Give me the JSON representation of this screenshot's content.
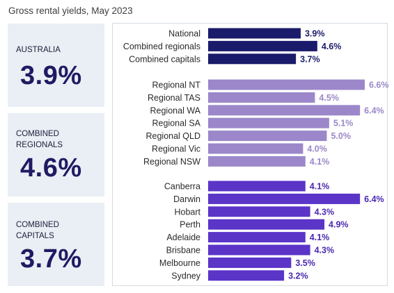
{
  "title": "Gross rental yields, May 2023",
  "cards": [
    {
      "label": "AUSTRALIA",
      "value": "3.9%"
    },
    {
      "label": "COMBINED\nREGIONALS",
      "value": "4.6%"
    },
    {
      "label": "COMBINED\nCAPITALS",
      "value": "3.7%"
    }
  ],
  "colors": {
    "aggregate": "#1b1b6b",
    "regional": "#9b87c9",
    "capital": "#5b34c8",
    "card_bg": "#e9eff4"
  },
  "chart_data": {
    "type": "bar",
    "orientation": "horizontal",
    "title": "Gross rental yields, May 2023",
    "groups": [
      {
        "name": "aggregate",
        "categories": [
          "National",
          "Combined regionals",
          "Combined capitals"
        ],
        "values": [
          3.9,
          4.6,
          3.7
        ],
        "labels": [
          "3.9%",
          "4.6%",
          "3.7%"
        ]
      },
      {
        "name": "regional",
        "categories": [
          "Regional NT",
          "Regional TAS",
          "Regional WA",
          "Regional SA",
          "Regional QLD",
          "Regional Vic",
          "Regional NSW"
        ],
        "values": [
          6.6,
          4.5,
          6.4,
          5.1,
          5.0,
          4.0,
          4.1
        ],
        "labels": [
          "6.6%",
          "4.5%",
          "6.4%",
          "5.1%",
          "5.0%",
          "4.0%",
          "4.1%"
        ]
      },
      {
        "name": "capital",
        "categories": [
          "Canberra",
          "Darwin",
          "Hobart",
          "Perth",
          "Adelaide",
          "Brisbane",
          "Melbourne",
          "Sydney"
        ],
        "values": [
          4.1,
          6.4,
          4.3,
          4.9,
          4.1,
          4.3,
          3.5,
          3.2
        ],
        "labels": [
          "4.1%",
          "6.4%",
          "4.3%",
          "4.9%",
          "4.1%",
          "4.3%",
          "3.5%",
          "3.2%"
        ]
      }
    ],
    "xlim": [
      0,
      6.6
    ],
    "grid": false,
    "legend": "none"
  }
}
